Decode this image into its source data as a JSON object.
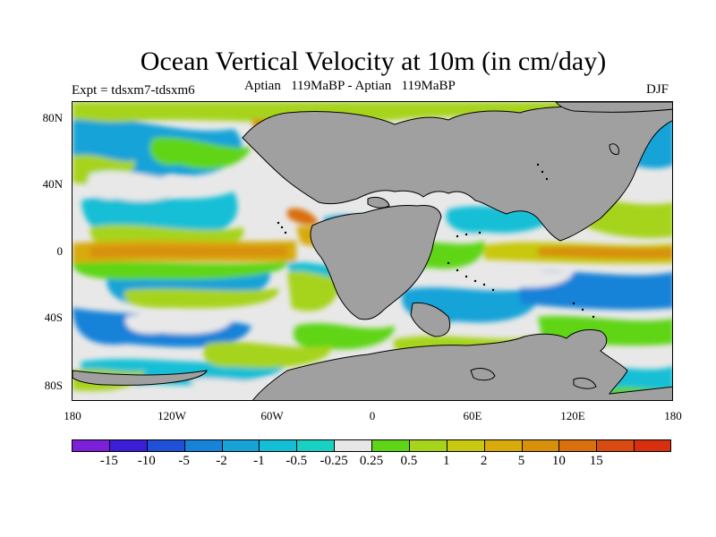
{
  "title": "Ocean Vertical Velocity at 10m (in cm/day)",
  "subtitle_left": "Expt = tdsxm7-tdsxm6",
  "subtitle_center": "Aptian   119MaBP - Aptian   119MaBP",
  "subtitle_right": "DJF",
  "lat_labels": [
    "80N",
    "40N",
    "0",
    "40S",
    "80S"
  ],
  "lon_labels": [
    "180",
    "120W",
    "60W",
    "0",
    "60E",
    "120E",
    "180"
  ],
  "colorbar": {
    "colors": [
      "#7b1fd8",
      "#3d1ed8",
      "#1f50d8",
      "#1882d8",
      "#18a3d8",
      "#14bfd6",
      "#18d1c2",
      "#e6e6e6",
      "#5fd518",
      "#a6d41a",
      "#c8c810",
      "#d8aa0a",
      "#d8900a",
      "#d8700e",
      "#d84a12",
      "#d8300e"
    ],
    "labels": [
      "-15",
      "-10",
      "-5",
      "-2",
      "-1",
      "-0.5",
      "-0.25",
      "0.25",
      "0.5",
      "1",
      "2",
      "5",
      "10",
      "15"
    ]
  },
  "land_color": "#a0a0a0"
}
